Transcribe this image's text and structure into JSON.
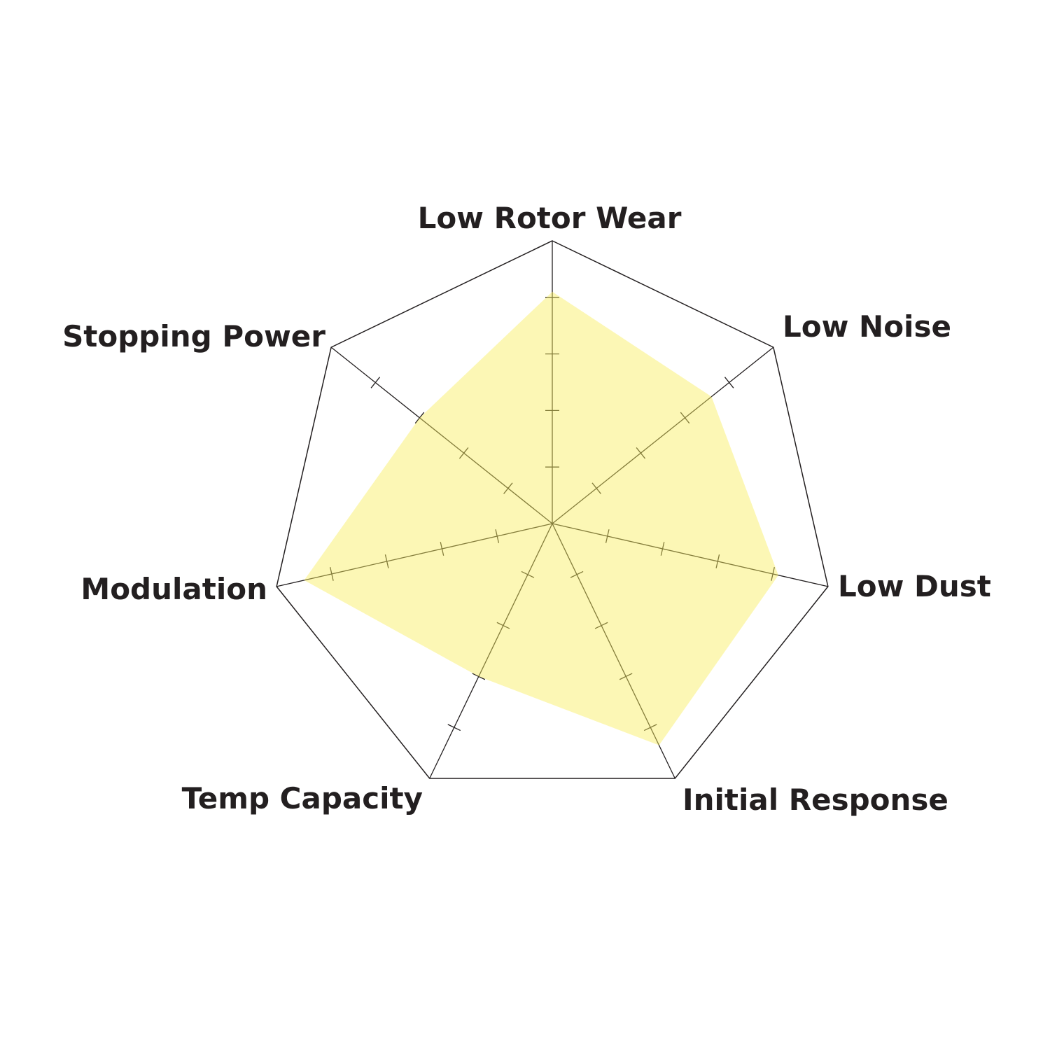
{
  "chart_data": {
    "type": "radar",
    "title": "",
    "categories": [
      "Low Rotor Wear",
      "Low Noise",
      "Low Dust",
      "Initial Response",
      "Temp Capacity",
      "Modulation",
      "Stopping Power"
    ],
    "series": [
      {
        "values": [
          8.2,
          7.2,
          8.2,
          8.7,
          6.0,
          9.0,
          6.0
        ]
      }
    ],
    "range": [
      0,
      10
    ],
    "ticks": [
      2,
      4,
      6,
      8
    ],
    "grid": true,
    "legend": "none",
    "colors": {
      "fill": "#f9ee5a",
      "axis": "#231f20",
      "label": "#231f20"
    }
  }
}
